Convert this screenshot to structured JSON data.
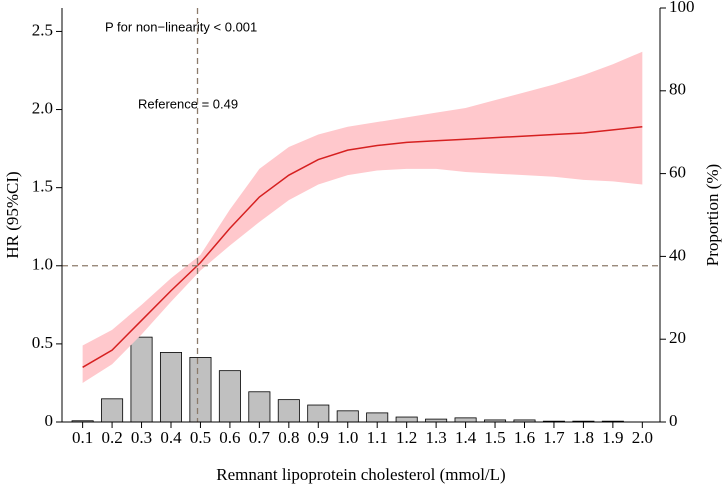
{
  "chart_data": {
    "type": "spline",
    "annotations": [
      "P for non−linearity < 0.001",
      "Reference = 0.49"
    ],
    "x_label": "Remnant lipoprotein cholesterol (mmol/L)",
    "y_label": "HR (95%CI)",
    "y2_label": "Proportion (%)",
    "x": [
      0.1,
      0.2,
      0.3,
      0.4,
      0.5,
      0.6,
      0.7,
      0.8,
      0.9,
      1.0,
      1.1,
      1.2,
      1.3,
      1.4,
      1.5,
      1.6,
      1.7,
      1.8,
      1.9,
      2.0
    ],
    "spline": {
      "color": "#d62020",
      "fill": "#ffc8cc",
      "values": [
        0.35,
        0.46,
        0.65,
        0.84,
        1.02,
        1.24,
        1.44,
        1.58,
        1.68,
        1.74,
        1.77,
        1.79,
        1.8,
        1.81,
        1.82,
        1.83,
        1.84,
        1.85,
        1.87,
        1.89
      ],
      "lower": [
        0.25,
        0.37,
        0.56,
        0.77,
        0.97,
        1.13,
        1.28,
        1.42,
        1.52,
        1.58,
        1.61,
        1.62,
        1.62,
        1.6,
        1.59,
        1.58,
        1.57,
        1.55,
        1.54,
        1.52
      ],
      "upper": [
        0.49,
        0.59,
        0.75,
        0.92,
        1.07,
        1.36,
        1.62,
        1.76,
        1.84,
        1.89,
        1.92,
        1.95,
        1.98,
        2.01,
        2.06,
        2.11,
        2.16,
        2.22,
        2.29,
        2.37
      ]
    },
    "bars": {
      "color": "#c0c0c0",
      "axis": "y2",
      "values": [
        0.3,
        5.6,
        20.5,
        16.8,
        15.6,
        12.4,
        7.3,
        5.4,
        4.1,
        2.7,
        2.2,
        1.2,
        0.7,
        1.0,
        0.5,
        0.5,
        0.2,
        0.2,
        0.2,
        0
      ]
    },
    "reference_x": 0.49,
    "reference_y": 1.0,
    "reference_color": "#8c7b6b",
    "xlim": [
      0.03,
      2.06
    ],
    "xticks": [
      0.1,
      0.2,
      0.3,
      0.4,
      0.5,
      0.6,
      0.7,
      0.8,
      0.9,
      {
        "value": 1.0,
        "label": "1.0"
      },
      1.1,
      1.2,
      1.3,
      1.4,
      1.5,
      1.6,
      1.7,
      1.8,
      1.9,
      {
        "value": 2.0,
        "label": "2.0"
      }
    ],
    "ylim": [
      0,
      2.65
    ],
    "yticks": [
      0,
      0.5,
      {
        "value": 1.0,
        "label": "1.0"
      },
      1.5,
      {
        "value": 2.0,
        "label": "2.0"
      },
      2.5
    ],
    "y2lim": [
      0,
      100
    ],
    "y2ticks": [
      0,
      20,
      40,
      60,
      80,
      100
    ]
  }
}
